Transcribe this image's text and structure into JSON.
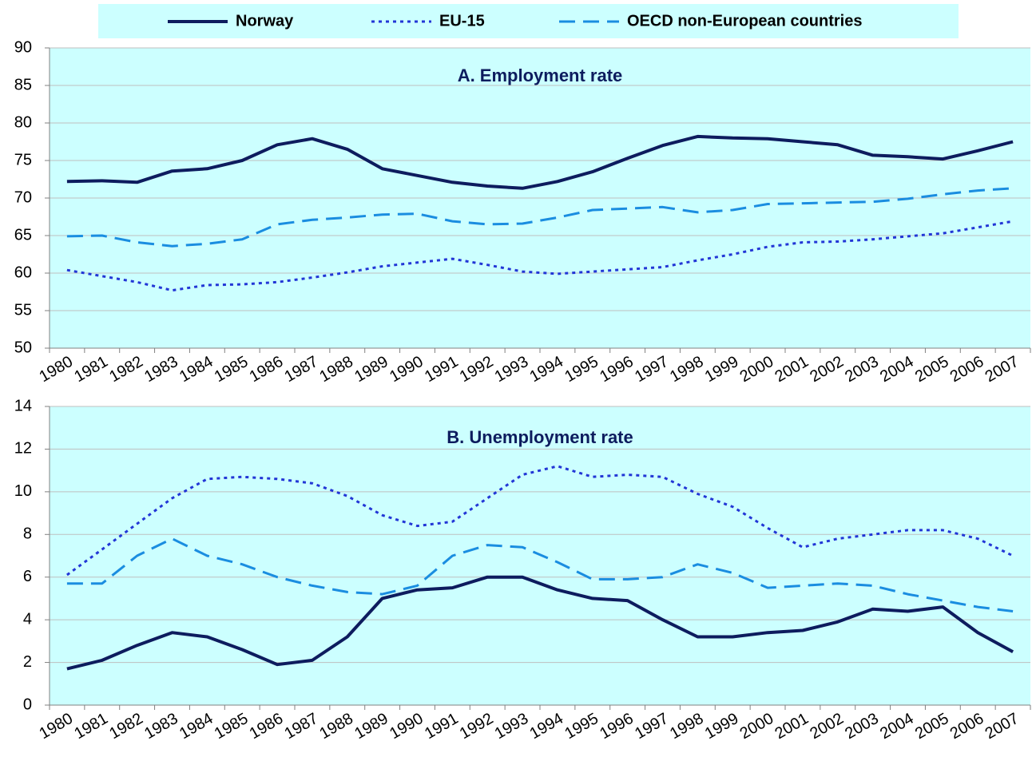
{
  "chart_data": [
    {
      "type": "line",
      "title": "A. Employment rate",
      "categories": [
        "1980",
        "1981",
        "1982",
        "1983",
        "1984",
        "1985",
        "1986",
        "1987",
        "1988",
        "1989",
        "1990",
        "1991",
        "1992",
        "1993",
        "1994",
        "1995",
        "1996",
        "1997",
        "1998",
        "1999",
        "2000",
        "2001",
        "2002",
        "2003",
        "2004",
        "2005",
        "2006",
        "2007"
      ],
      "ylim": [
        50,
        90
      ],
      "yticks": [
        50,
        55,
        60,
        65,
        70,
        75,
        80,
        85,
        90
      ],
      "grid": true,
      "series": [
        {
          "name": "Norway",
          "color": "#0d1c5e",
          "line_style": "solid",
          "values": [
            72.2,
            72.3,
            72.1,
            73.6,
            73.9,
            75.0,
            77.1,
            77.9,
            76.5,
            73.9,
            73.0,
            72.1,
            71.6,
            71.3,
            72.2,
            73.5,
            75.3,
            77.0,
            78.2,
            78.0,
            77.9,
            77.5,
            77.1,
            75.7,
            75.5,
            75.2,
            76.3,
            77.5
          ]
        },
        {
          "name": "EU-15",
          "color": "#2236d6",
          "line_style": "dotted",
          "values": [
            60.4,
            59.6,
            58.8,
            57.7,
            58.4,
            58.5,
            58.8,
            59.4,
            60.1,
            60.9,
            61.4,
            61.9,
            61.1,
            60.2,
            59.9,
            60.2,
            60.5,
            60.8,
            61.7,
            62.5,
            63.5,
            64.1,
            64.2,
            64.5,
            64.9,
            65.3,
            66.1,
            66.9
          ]
        },
        {
          "name": "OECD non-European countries",
          "color": "#1a8de0",
          "line_style": "dashed",
          "values": [
            64.9,
            65.0,
            64.1,
            63.6,
            63.9,
            64.5,
            66.5,
            67.1,
            67.4,
            67.8,
            67.9,
            66.9,
            66.5,
            66.6,
            67.4,
            68.4,
            68.6,
            68.8,
            68.1,
            68.4,
            69.2,
            69.3,
            69.4,
            69.5,
            69.9,
            70.5,
            71.0,
            71.3
          ]
        }
      ]
    },
    {
      "type": "line",
      "title": "B. Unemployment rate",
      "categories": [
        "1980",
        "1981",
        "1982",
        "1983",
        "1984",
        "1985",
        "1986",
        "1987",
        "1988",
        "1989",
        "1990",
        "1991",
        "1992",
        "1993",
        "1994",
        "1995",
        "1996",
        "1997",
        "1998",
        "1999",
        "2000",
        "2001",
        "2002",
        "2003",
        "2004",
        "2005",
        "2006",
        "2007"
      ],
      "ylim": [
        0,
        14
      ],
      "yticks": [
        0,
        2,
        4,
        6,
        8,
        10,
        12,
        14
      ],
      "grid": true,
      "series": [
        {
          "name": "Norway",
          "color": "#0d1c5e",
          "line_style": "solid",
          "values": [
            1.7,
            2.1,
            2.8,
            3.4,
            3.2,
            2.6,
            1.9,
            2.1,
            3.2,
            5.0,
            5.4,
            5.5,
            6.0,
            6.0,
            5.4,
            5.0,
            4.9,
            4.0,
            3.2,
            3.2,
            3.4,
            3.5,
            3.9,
            4.5,
            4.4,
            4.6,
            3.4,
            2.5
          ]
        },
        {
          "name": "EU-15",
          "color": "#2236d6",
          "line_style": "dotted",
          "values": [
            6.1,
            7.3,
            8.5,
            9.7,
            10.6,
            10.7,
            10.6,
            10.4,
            9.8,
            8.9,
            8.4,
            8.6,
            9.7,
            10.8,
            11.2,
            10.7,
            10.8,
            10.7,
            9.9,
            9.3,
            8.3,
            7.4,
            7.8,
            8.0,
            8.2,
            8.2,
            7.8,
            7.0
          ]
        },
        {
          "name": "OECD non-European countries",
          "color": "#1a8de0",
          "line_style": "dashed",
          "values": [
            5.7,
            5.7,
            7.0,
            7.8,
            7.0,
            6.6,
            6.0,
            5.6,
            5.3,
            5.2,
            5.6,
            7.0,
            7.5,
            7.4,
            6.7,
            5.9,
            5.9,
            6.0,
            6.6,
            6.2,
            5.5,
            5.6,
            5.7,
            5.6,
            5.2,
            4.9,
            4.6,
            4.4
          ]
        }
      ]
    }
  ]
}
